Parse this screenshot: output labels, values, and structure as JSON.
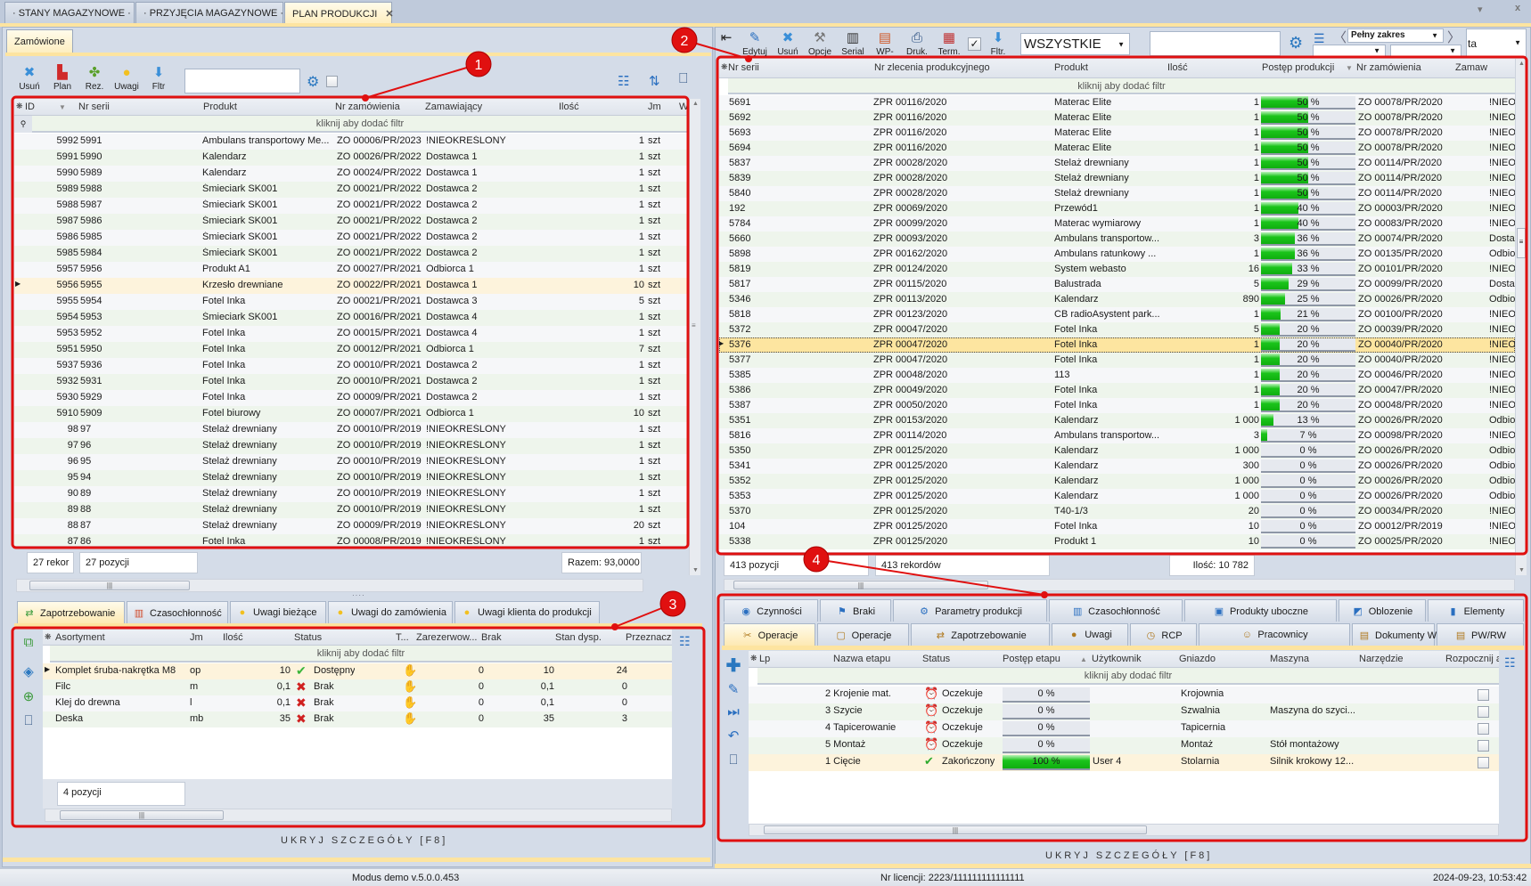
{
  "doc_tabs": [
    {
      "label": "· STANY MAGAZYNOWE ·"
    },
    {
      "label": "· PRZYJĘCIA MAGAZYNOWE ·"
    },
    {
      "label": "PLAN PRODUKCJI",
      "close": "✕"
    }
  ],
  "window_controls": {
    "dropdown": "▾",
    "close": "x"
  },
  "left": {
    "tab": "Zamówione",
    "toolbar": [
      {
        "label": "Usuń",
        "icon": "delete-icon"
      },
      {
        "label": "Plan",
        "icon": "factory-icon"
      },
      {
        "label": "Rez.",
        "icon": "puzzle-icon"
      },
      {
        "label": "Uwagi",
        "icon": "bulb-icon"
      },
      {
        "label": "Fltr",
        "icon": "filter-arrow-icon"
      }
    ],
    "search_value": "",
    "columns": [
      "ID",
      "Nr serii",
      "Produkt",
      "Nr zamówienia",
      "Zamawiający",
      "Ilość",
      "Jm",
      "W"
    ],
    "filter_hint": "kliknij aby dodać filtr",
    "rows": [
      [
        "5992",
        "5991",
        "Ambulans transportowy Me...",
        "ZO 00006/PR/2023",
        "!NIEOKREŚLONY",
        "1",
        "szt"
      ],
      [
        "5991",
        "5990",
        "Kalendarz",
        "ZO 00026/PR/2022",
        "Dostawca 1",
        "1",
        "szt"
      ],
      [
        "5990",
        "5989",
        "Kalendarz",
        "ZO 00024/PR/2022",
        "Dostawca 1",
        "1",
        "szt"
      ],
      [
        "5989",
        "5988",
        "Śmieciark SK001",
        "ZO 00021/PR/2022",
        "Dostawca 2",
        "1",
        "szt"
      ],
      [
        "5988",
        "5987",
        "Śmieciark SK001",
        "ZO 00021/PR/2022",
        "Dostawca 2",
        "1",
        "szt"
      ],
      [
        "5987",
        "5986",
        "Śmieciark SK001",
        "ZO 00021/PR/2022",
        "Dostawca 2",
        "1",
        "szt"
      ],
      [
        "5986",
        "5985",
        "Śmieciark SK001",
        "ZO 00021/PR/2022",
        "Dostawca 2",
        "1",
        "szt"
      ],
      [
        "5985",
        "5984",
        "Śmieciark SK001",
        "ZO 00021/PR/2022",
        "Dostawca 2",
        "1",
        "szt"
      ],
      [
        "5957",
        "5956",
        "Produkt A1",
        "ZO 00027/PR/2021",
        "Odbiorca 1",
        "1",
        "szt"
      ],
      [
        "5956",
        "5955",
        "Krzesło drewniane",
        "ZO 00022/PR/2021",
        "Dostawca 1",
        "10",
        "szt"
      ],
      [
        "5955",
        "5954",
        "Fotel Inka",
        "ZO 00021/PR/2021",
        "Dostawca 3",
        "5",
        "szt"
      ],
      [
        "5954",
        "5953",
        "Śmieciark SK001",
        "ZO 00016/PR/2021",
        "Dostawca 4",
        "1",
        "szt"
      ],
      [
        "5953",
        "5952",
        "Fotel Inka",
        "ZO 00015/PR/2021",
        "Dostawca 4",
        "1",
        "szt"
      ],
      [
        "5951",
        "5950",
        "Fotel Inka",
        "ZO 00012/PR/2021",
        "Odbiorca 1",
        "7",
        "szt"
      ],
      [
        "5937",
        "5936",
        "Fotel Inka",
        "ZO 00010/PR/2021",
        "Dostawca 2",
        "1",
        "szt"
      ],
      [
        "5932",
        "5931",
        "Fotel Inka",
        "ZO 00010/PR/2021",
        "Dostawca 2",
        "1",
        "szt"
      ],
      [
        "5930",
        "5929",
        "Fotel Inka",
        "ZO 00009/PR/2021",
        "Dostawca 2",
        "1",
        "szt"
      ],
      [
        "5910",
        "5909",
        "Fotel biurowy",
        "ZO 00007/PR/2021",
        "Odbiorca 1",
        "10",
        "szt"
      ],
      [
        "98",
        "97",
        "Stelaż drewniany",
        "ZO 00010/PR/2019",
        "!NIEOKREŚLONY",
        "1",
        "szt"
      ],
      [
        "97",
        "96",
        "Stelaż drewniany",
        "ZO 00010/PR/2019",
        "!NIEOKREŚLONY",
        "1",
        "szt"
      ],
      [
        "96",
        "95",
        "Stelaż drewniany",
        "ZO 00010/PR/2019",
        "!NIEOKREŚLONY",
        "1",
        "szt"
      ],
      [
        "95",
        "94",
        "Stelaż drewniany",
        "ZO 00010/PR/2019",
        "!NIEOKREŚLONY",
        "1",
        "szt"
      ],
      [
        "90",
        "89",
        "Stelaż drewniany",
        "ZO 00010/PR/2019",
        "!NIEOKREŚLONY",
        "1",
        "szt"
      ],
      [
        "89",
        "88",
        "Stelaż drewniany",
        "ZO 00010/PR/2019",
        "!NIEOKREŚLONY",
        "1",
        "szt"
      ],
      [
        "88",
        "87",
        "Stelaż drewniany",
        "ZO 00009/PR/2019",
        "!NIEOKREŚLONY",
        "20",
        "szt"
      ],
      [
        "87",
        "86",
        "Fotel Inka",
        "ZO 00008/PR/2019",
        "!NIEOKREŚLONY",
        "1",
        "szt"
      ]
    ],
    "selected_row": 9,
    "status": {
      "records": "27 rekor",
      "positions": "27 pozycji",
      "total": "Razem:  93,0000"
    },
    "detail_tabs": [
      "Zapotrzebowanie",
      "Czasochłonność",
      "Uwagi bieżące",
      "Uwagi do zamówienia",
      "Uwagi klienta do produkcji"
    ],
    "detail": {
      "columns": [
        "Asortyment",
        "Jm",
        "Ilość",
        "Status",
        "T...",
        "Zarezerwow...",
        "Brak",
        "Stan dysp.",
        "Przeznacz"
      ],
      "filter_hint": "kliknij aby dodać filtr",
      "rows": [
        {
          "name": "Komplet śruba-nakrętka M8",
          "jm": "op",
          "qty": "10",
          "status": "Dostępny",
          "ok": true,
          "reserved": "0",
          "brak": "10",
          "stan": "24"
        },
        {
          "name": "Filc",
          "jm": "m",
          "qty": "0,1",
          "status": "Brak",
          "ok": false,
          "reserved": "0",
          "brak": "0,1",
          "stan": "0"
        },
        {
          "name": "Klej do drewna",
          "jm": "l",
          "qty": "0,1",
          "status": "Brak",
          "ok": false,
          "reserved": "0",
          "brak": "0,1",
          "stan": "0"
        },
        {
          "name": "Deska",
          "jm": "mb",
          "qty": "35",
          "status": "Brak",
          "ok": false,
          "reserved": "0",
          "brak": "35",
          "stan": "3"
        }
      ],
      "positions": "4 pozycji"
    },
    "hide_label": "UKRYJ SZCZEGÓŁY [F8]"
  },
  "right": {
    "toolbar": [
      {
        "label": "",
        "icon": "exit-icon"
      },
      {
        "label": "Edytuj",
        "icon": "pencil-icon"
      },
      {
        "label": "Usuń",
        "icon": "delete-icon"
      },
      {
        "label": "Opcje",
        "icon": "tools-icon"
      },
      {
        "label": "Serial",
        "icon": "barcode-icon"
      },
      {
        "label": "WP-",
        "icon": "document-icon"
      },
      {
        "label": "Druk.",
        "icon": "printer-icon"
      },
      {
        "label": "Term.",
        "icon": "calendar-icon"
      },
      {
        "label": "Fltr.",
        "icon": "filter-arrow-icon"
      }
    ],
    "filter_checked": true,
    "status_select": "WSZYSTKIE",
    "search_value": "",
    "range_select": "Pełny zakres",
    "extra_select": "ta",
    "columns": [
      "Nr serii",
      "Nr zlecenia produkcyjnego",
      "Produkt",
      "Ilość",
      "Postęp produkcji",
      "Nr zamówienia",
      "Zamaw"
    ],
    "filter_hint": "kliknij aby dodać filtr",
    "rows": [
      [
        "5691",
        "ZPR 00116/2020",
        "Materac Elite",
        "1",
        50,
        "ZO 00078/PR/2020",
        "!NIEO"
      ],
      [
        "5692",
        "ZPR 00116/2020",
        "Materac Elite",
        "1",
        50,
        "ZO 00078/PR/2020",
        "!NIEO"
      ],
      [
        "5693",
        "ZPR 00116/2020",
        "Materac Elite",
        "1",
        50,
        "ZO 00078/PR/2020",
        "!NIEO"
      ],
      [
        "5694",
        "ZPR 00116/2020",
        "Materac Elite",
        "1",
        50,
        "ZO 00078/PR/2020",
        "!NIEO"
      ],
      [
        "5837",
        "ZPR 00028/2020",
        "Stelaż drewniany",
        "1",
        50,
        "ZO 00114/PR/2020",
        "!NIEO"
      ],
      [
        "5839",
        "ZPR 00028/2020",
        "Stelaż drewniany",
        "1",
        50,
        "ZO 00114/PR/2020",
        "!NIEO"
      ],
      [
        "5840",
        "ZPR 00028/2020",
        "Stelaż drewniany",
        "1",
        50,
        "ZO 00114/PR/2020",
        "!NIEO"
      ],
      [
        "192",
        "ZPR 00069/2020",
        "Przewód1",
        "1",
        40,
        "ZO 00003/PR/2020",
        "!NIEO"
      ],
      [
        "5784",
        "ZPR 00099/2020",
        "Materac wymiarowy",
        "1",
        40,
        "ZO 00083/PR/2020",
        "!NIEO"
      ],
      [
        "5660",
        "ZPR 00093/2020",
        "Ambulans transportow...",
        "3",
        36,
        "ZO 00074/PR/2020",
        "Dosta"
      ],
      [
        "5898",
        "ZPR 00162/2020",
        "Ambulans ratunkowy ...",
        "1",
        36,
        "ZO 00135/PR/2020",
        "Odbio"
      ],
      [
        "5819",
        "ZPR 00124/2020",
        "System webasto",
        "16",
        33,
        "ZO 00101/PR/2020",
        "!NIEO"
      ],
      [
        "5817",
        "ZPR 00115/2020",
        "Balustrada",
        "5",
        29,
        "ZO 00099/PR/2020",
        "Dosta"
      ],
      [
        "5346",
        "ZPR 00113/2020",
        "Kalendarz",
        "890",
        25,
        "ZO 00026/PR/2020",
        "Odbio"
      ],
      [
        "5818",
        "ZPR 00123/2020",
        "CB radioAsystent park...",
        "1",
        21,
        "ZO 00100/PR/2020",
        "!NIEO"
      ],
      [
        "5372",
        "ZPR 00047/2020",
        "Fotel Inka",
        "5",
        20,
        "ZO 00039/PR/2020",
        "!NIEO"
      ],
      [
        "5376",
        "ZPR 00047/2020",
        "Fotel Inka",
        "1",
        20,
        "ZO 00040/PR/2020",
        "!NIEO"
      ],
      [
        "5377",
        "ZPR 00047/2020",
        "Fotel Inka",
        "1",
        20,
        "ZO 00040/PR/2020",
        "!NIEO"
      ],
      [
        "5385",
        "ZPR 00048/2020",
        "113",
        "1",
        20,
        "ZO 00046/PR/2020",
        "!NIEO"
      ],
      [
        "5386",
        "ZPR 00049/2020",
        "Fotel Inka",
        "1",
        20,
        "ZO 00047/PR/2020",
        "!NIEO"
      ],
      [
        "5387",
        "ZPR 00050/2020",
        "Fotel Inka",
        "1",
        20,
        "ZO 00048/PR/2020",
        "!NIEO"
      ],
      [
        "5351",
        "ZPR 00153/2020",
        "Kalendarz",
        "1 000",
        13,
        "ZO 00026/PR/2020",
        "Odbio"
      ],
      [
        "5816",
        "ZPR 00114/2020",
        "Ambulans transportow...",
        "3",
        7,
        "ZO 00098/PR/2020",
        "!NIEO"
      ],
      [
        "5350",
        "ZPR 00125/2020",
        "Kalendarz",
        "1 000",
        0,
        "ZO 00026/PR/2020",
        "Odbio"
      ],
      [
        "5341",
        "ZPR 00125/2020",
        "Kalendarz",
        "300",
        0,
        "ZO 00026/PR/2020",
        "Odbio"
      ],
      [
        "5352",
        "ZPR 00125/2020",
        "Kalendarz",
        "1 000",
        0,
        "ZO 00026/PR/2020",
        "Odbio"
      ],
      [
        "5353",
        "ZPR 00125/2020",
        "Kalendarz",
        "1 000",
        0,
        "ZO 00026/PR/2020",
        "Odbio"
      ],
      [
        "5370",
        "ZPR 00125/2020",
        "T40-1/3",
        "20",
        0,
        "ZO 00034/PR/2020",
        "!NIEO"
      ],
      [
        "104",
        "ZPR 00125/2020",
        "Fotel Inka",
        "10",
        0,
        "ZO 00012/PR/2019",
        "!NIEO"
      ],
      [
        "5338",
        "ZPR 00125/2020",
        "Produkt 1",
        "10",
        0,
        "ZO 00025/PR/2020",
        "!NIEO"
      ]
    ],
    "selected_row": 16,
    "status": {
      "positions": "413 pozycji",
      "records": "413 rekordów",
      "qty": "Ilość: 10 782"
    },
    "detail_tabs_row1": [
      {
        "label": "Czynności",
        "icon": "◉"
      },
      {
        "label": "Braki",
        "icon": "⚑"
      },
      {
        "label": "Parametry produkcji",
        "icon": "⚙"
      },
      {
        "label": "Czasochłonność",
        "icon": "▥"
      },
      {
        "label": "Produkty uboczne",
        "icon": "▣"
      },
      {
        "label": "Oblozenie",
        "icon": "◩"
      },
      {
        "label": "Elementy",
        "icon": "▮"
      }
    ],
    "detail_tabs_row2": [
      {
        "label": "Operacje",
        "icon": "✂"
      },
      {
        "label": "Operacje",
        "icon": "▢"
      },
      {
        "label": "Zapotrzebowanie",
        "icon": "⇄"
      },
      {
        "label": "Uwagi",
        "icon": "●"
      },
      {
        "label": "RCP",
        "icon": "◷"
      },
      {
        "label": "Pracownicy",
        "icon": "☺"
      },
      {
        "label": "Dokumenty WP-",
        "icon": "▤"
      },
      {
        "label": "PW/RW",
        "icon": "▤"
      }
    ],
    "detail": {
      "columns": [
        "Lp",
        "Nazwa etapu",
        "Status",
        "Postęp etapu",
        "Użytkownik",
        "Gniazdo",
        "Maszyna",
        "Narzędzie",
        "Rozpocznij a"
      ],
      "filter_hint": "kliknij aby dodać filtr",
      "rows": [
        {
          "name": "2 Krojenie mat.",
          "status": "Oczekuje",
          "done": false,
          "progress": 0,
          "user": "",
          "socket": "Krojownia",
          "machine": ""
        },
        {
          "name": "3 Szycie",
          "status": "Oczekuje",
          "done": false,
          "progress": 0,
          "user": "",
          "socket": "Szwalnia",
          "machine": "Maszyna do szyci..."
        },
        {
          "name": "4 Tapicerowanie",
          "status": "Oczekuje",
          "done": false,
          "progress": 0,
          "user": "",
          "socket": "Tapicernia",
          "machine": ""
        },
        {
          "name": "5 Montaż",
          "status": "Oczekuje",
          "done": false,
          "progress": 0,
          "user": "",
          "socket": "Montaż",
          "machine": "Stół montażowy"
        },
        {
          "name": "1 Cięcie",
          "status": "Zakończony",
          "done": true,
          "progress": 100,
          "user": "User 4",
          "socket": "Stolarnia",
          "machine": "Silnik krokowy 12..."
        }
      ]
    },
    "hide_label": "UKRYJ SZCZEGÓŁY [F8]"
  },
  "statusbar": {
    "version": "Modus demo v.5.0.0.453",
    "license": "Nr licencji: 2223/111111111111111",
    "datetime": "2024-09-23,  10:53:42"
  },
  "annotations": [
    "1",
    "2",
    "3",
    "4"
  ],
  "colors": {
    "annotation": "#e01010",
    "progress": "#1bc41b",
    "selected": "#fde5a0",
    "accent": "#fde4a0"
  }
}
